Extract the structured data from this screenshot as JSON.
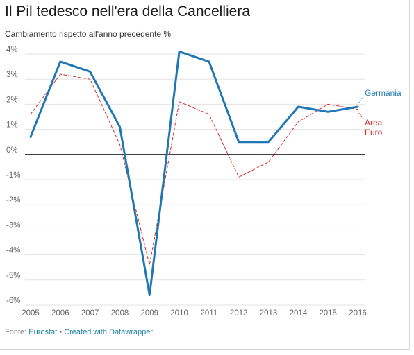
{
  "chart_data": {
    "type": "line",
    "title": "Il Pil tedesco nell'era della Cancelliera",
    "subtitle": "Cambiamento rispetto all'anno precedente %",
    "x": [
      2005,
      2006,
      2007,
      2008,
      2009,
      2010,
      2011,
      2012,
      2013,
      2014,
      2015,
      2016
    ],
    "x_tick_labels": [
      "2005",
      "2006",
      "2007",
      "2008",
      "2009",
      "2010",
      "2011",
      "2012",
      "2013",
      "2014",
      "2015",
      "2016"
    ],
    "ylim": [
      -6,
      4
    ],
    "y_ticks": [
      4,
      3,
      2,
      1,
      0,
      -1,
      -2,
      -3,
      -4,
      -5,
      -6
    ],
    "y_tick_labels": [
      "4%",
      "3%",
      "2%",
      "1%",
      "0%",
      "-1%",
      "-2%",
      "-3%",
      "-4%",
      "-5%",
      "-6%"
    ],
    "grid": true,
    "series": [
      {
        "name": "Germania",
        "color": "#1f77b4",
        "style": "solid",
        "values": [
          0.7,
          3.7,
          3.3,
          1.1,
          -5.6,
          4.1,
          3.7,
          0.5,
          0.5,
          1.9,
          1.7,
          1.9
        ]
      },
      {
        "name": "Area Euro",
        "label_lines": [
          "Area",
          "Euro"
        ],
        "color": "#d62728",
        "style": "dashed",
        "values": [
          1.6,
          3.2,
          3.0,
          0.4,
          -4.4,
          2.1,
          1.6,
          -0.9,
          -0.3,
          1.3,
          2.0,
          1.8
        ]
      }
    ]
  },
  "footer": {
    "prefix": "Fonte: ",
    "source": "Eurostat",
    "separator": " • ",
    "credit": "Created with Datawrapper"
  }
}
